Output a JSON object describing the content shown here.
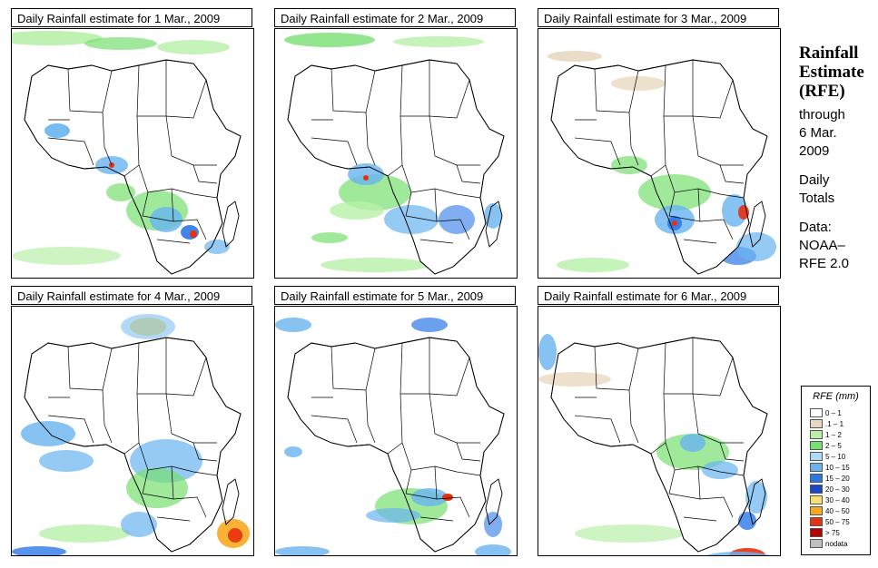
{
  "panels": [
    {
      "title": "Daily Rainfall estimate for  1 Mar., 2009"
    },
    {
      "title": "Daily Rainfall estimate for  2 Mar., 2009"
    },
    {
      "title": "Daily Rainfall estimate for  3 Mar., 2009"
    },
    {
      "title": "Daily Rainfall estimate for  4 Mar., 2009"
    },
    {
      "title": "Daily Rainfall estimate for  5 Mar., 2009"
    },
    {
      "title": "Daily Rainfall estimate for  6 Mar., 2009"
    }
  ],
  "side": {
    "title_line1": "Rainfall",
    "title_line2": "Estimate",
    "title_line3": "(RFE)",
    "through": "through",
    "date_line1": "6 Mar.",
    "date_line2": "2009",
    "daily_line1": "Daily",
    "daily_line2": "Totals",
    "data_label": "Data:",
    "data_line1": "NOAA–",
    "data_line2": "RFE 2.0"
  },
  "legend": {
    "title": "RFE (mm)",
    "items": [
      {
        "label": "0 – 1",
        "color": "#ffffff"
      },
      {
        "label": ".1 – 1",
        "color": "#e8d8c0"
      },
      {
        "label": "1 – 2",
        "color": "#b8f0a8"
      },
      {
        "label": "2 – 5",
        "color": "#78e070"
      },
      {
        "label": "5 – 10",
        "color": "#a8dcf8"
      },
      {
        "label": "10 – 15",
        "color": "#68b4f0"
      },
      {
        "label": "15 – 20",
        "color": "#2c78e8"
      },
      {
        "label": "20 – 30",
        "color": "#1848c8"
      },
      {
        "label": "30 – 40",
        "color": "#f8e070"
      },
      {
        "label": "40 – 50",
        "color": "#f8a820"
      },
      {
        "label": "50 – 75",
        "color": "#e83010"
      },
      {
        "label": "> 75",
        "color": "#b80000"
      },
      {
        "label": "nodata",
        "color": "#c0c0c0"
      }
    ]
  }
}
